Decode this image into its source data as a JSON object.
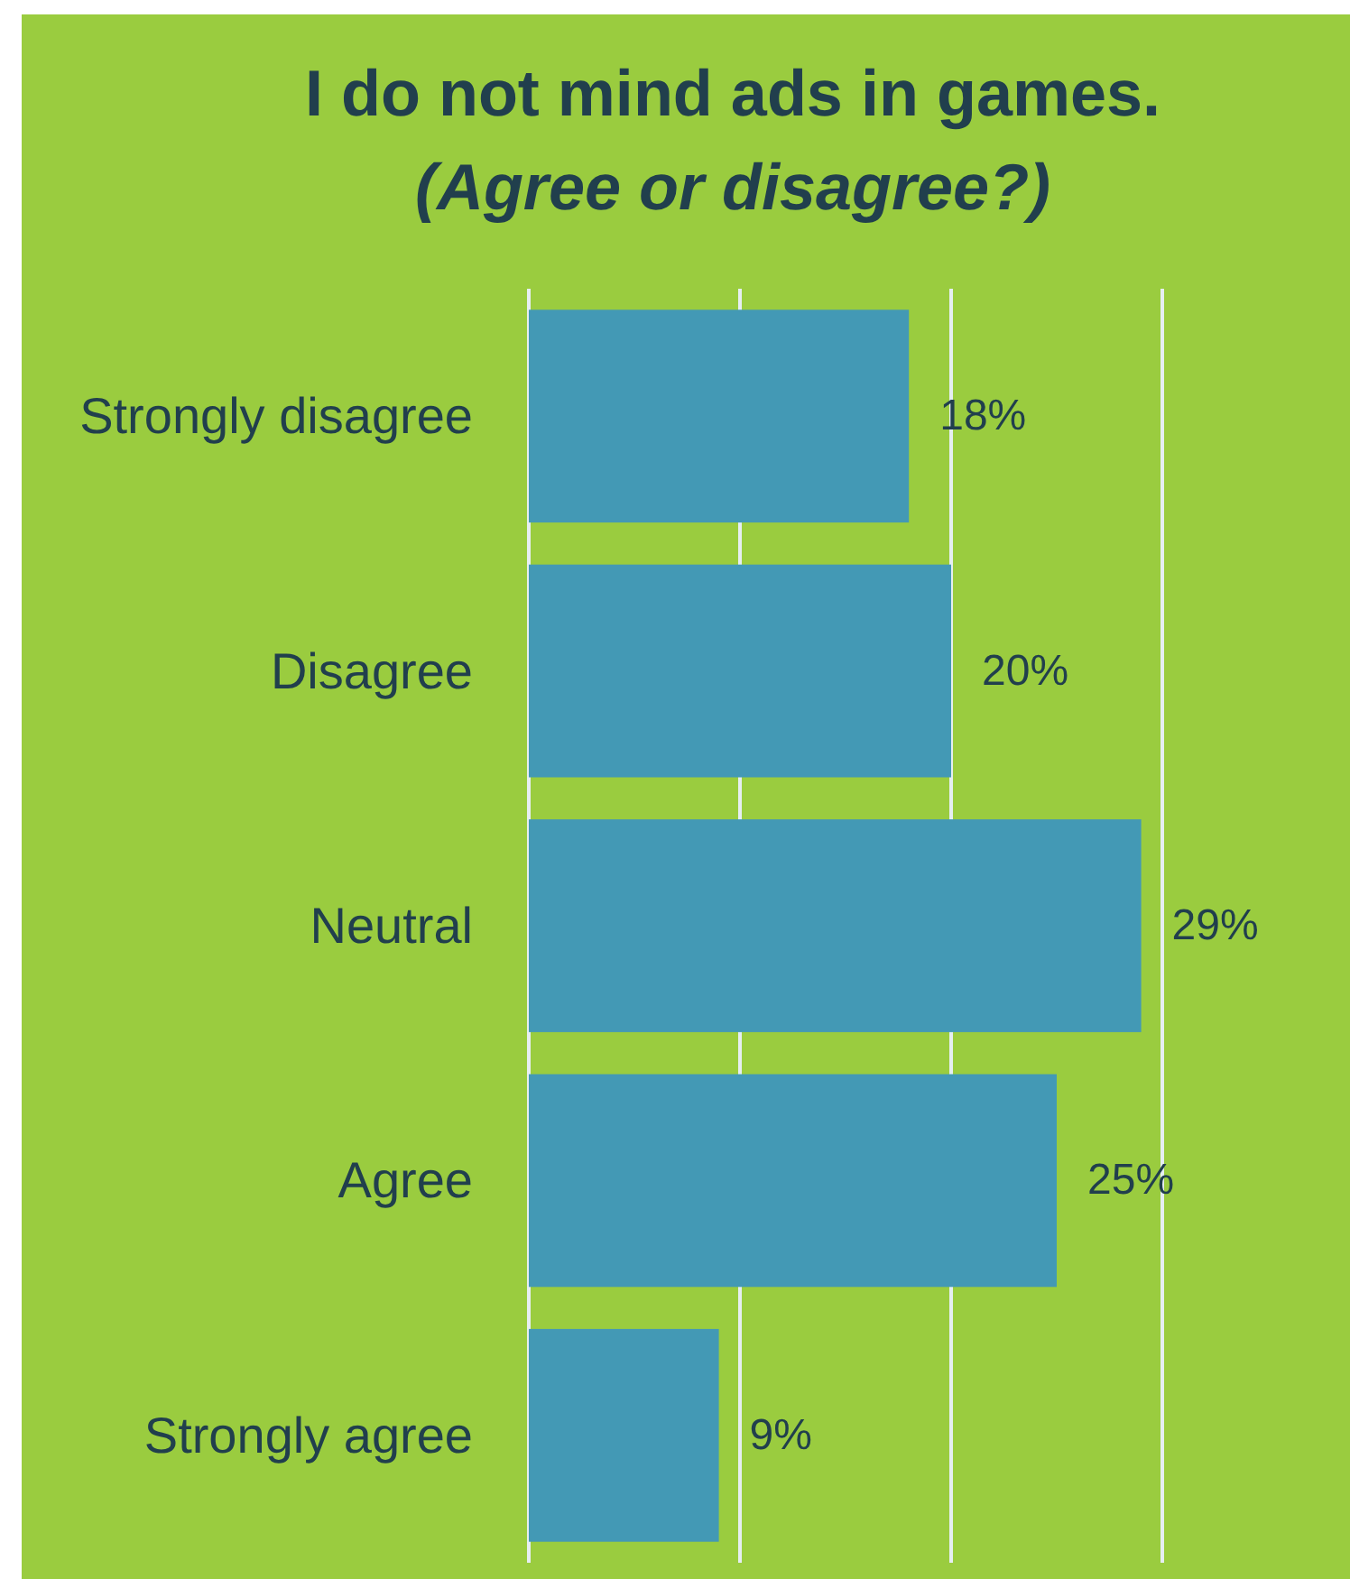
{
  "chart_data": {
    "type": "bar",
    "orientation": "horizontal",
    "title": "I do not mind ads in games.",
    "subtitle": "(Agree or disagree?)",
    "categories": [
      "Strongly disagree",
      "Disagree",
      "Neutral",
      "Agree",
      "Strongly agree"
    ],
    "values": [
      18,
      20,
      29,
      25,
      9
    ],
    "value_labels": [
      "18%",
      "20%",
      "29%",
      "25%",
      "9%"
    ],
    "color": "#4399b5",
    "xlim": [
      0,
      30
    ],
    "xticks": [
      {
        "value": 0,
        "label": null
      },
      {
        "value": 10,
        "label": null
      },
      {
        "value": 20,
        "label": null
      },
      {
        "value": 30,
        "label": null
      }
    ],
    "grid": "x",
    "tick_labels": "y"
  }
}
